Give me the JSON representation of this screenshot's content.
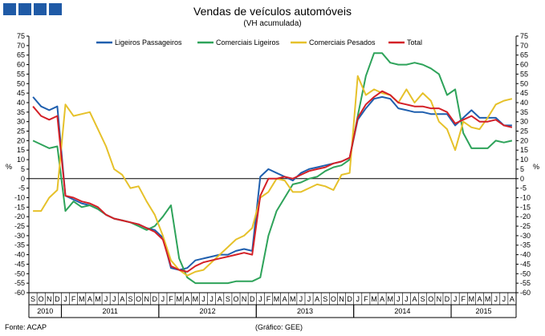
{
  "header": {
    "title": "Vendas de veículos automóveis",
    "subtitle": "(VH acumulada)"
  },
  "footer": {
    "source": "Fonte: ACAP",
    "credit": "(Gráfico: GEE)"
  },
  "colors": {
    "ligeiros_passageiros": "#1f5fae",
    "comerciais_ligeiros": "#2ea35a",
    "comerciais_pesados": "#e6c12a",
    "total": "#d42027",
    "logo": "#1f5aa6"
  },
  "chart_data": {
    "type": "line",
    "title": "Vendas de veículos automóveis",
    "subtitle": "(VH acumulada)",
    "ylabel_left": "%",
    "ylabel_right": "%",
    "ylim": [
      -60,
      75
    ],
    "yticks": [
      -60,
      -55,
      -50,
      -45,
      -40,
      -35,
      -30,
      -25,
      -20,
      -15,
      -10,
      -5,
      0,
      5,
      10,
      15,
      20,
      25,
      30,
      35,
      40,
      45,
      50,
      55,
      60,
      65,
      70,
      75
    ],
    "legend_position": "top",
    "x": [
      "S",
      "O",
      "N",
      "D",
      "J",
      "F",
      "M",
      "A",
      "M",
      "J",
      "J",
      "A",
      "S",
      "O",
      "N",
      "D",
      "J",
      "F",
      "M",
      "A",
      "M",
      "J",
      "J",
      "A",
      "S",
      "O",
      "N",
      "D",
      "J",
      "F",
      "M",
      "A",
      "M",
      "J",
      "J",
      "A",
      "S",
      "O",
      "N",
      "D",
      "J",
      "F",
      "M",
      "A",
      "M",
      "J",
      "J",
      "A",
      "S",
      "O",
      "N",
      "D",
      "J",
      "F",
      "M",
      "A",
      "M",
      "J",
      "J",
      "A"
    ],
    "years": [
      {
        "label": "2010",
        "start": 0,
        "end": 3
      },
      {
        "label": "2011",
        "start": 4,
        "end": 15
      },
      {
        "label": "2012",
        "start": 16,
        "end": 27
      },
      {
        "label": "2013",
        "start": 28,
        "end": 39
      },
      {
        "label": "2014",
        "start": 40,
        "end": 51
      },
      {
        "label": "2015",
        "start": 52,
        "end": 59
      }
    ],
    "series": [
      {
        "name": "Ligeiros Passageiros",
        "color": "#1f5fae",
        "values": [
          43,
          38,
          36,
          38,
          -9,
          -11,
          -13,
          -14,
          -16,
          -19,
          -21,
          -22,
          -23,
          -24,
          -26,
          -27,
          -31,
          -47,
          -48,
          -47,
          -43,
          -42,
          -41,
          -40,
          -40,
          -38,
          -37,
          -38,
          1,
          5,
          3,
          1,
          -1,
          3,
          5,
          6,
          7,
          8,
          9,
          11,
          31,
          37,
          42,
          43,
          42,
          37,
          36,
          35,
          35,
          34,
          34,
          34,
          28,
          32,
          36,
          32,
          32,
          32,
          28,
          28
        ]
      },
      {
        "name": "Comerciais Ligeiros",
        "color": "#2ea35a",
        "values": [
          20,
          18,
          16,
          17,
          -17,
          -12,
          -15,
          -14,
          -16,
          -19,
          -21,
          -22,
          -23,
          -25,
          -27,
          -25,
          -20,
          -14,
          -42,
          -52,
          -55,
          -55,
          -55,
          -55,
          -55,
          -54,
          -54,
          -54,
          -52,
          -30,
          -17,
          -10,
          -3,
          -2,
          0,
          1,
          4,
          6,
          7,
          10,
          33,
          54,
          66,
          66,
          61,
          60,
          60,
          61,
          60,
          58,
          55,
          44,
          47,
          24,
          16,
          16,
          16,
          20,
          19,
          20
        ]
      },
      {
        "name": "Comerciais Pesados",
        "color": "#e6c12a",
        "values": [
          -17,
          -17,
          -10,
          -6,
          39,
          33,
          34,
          35,
          26,
          17,
          5,
          2,
          -5,
          -4,
          -12,
          -19,
          -30,
          -43,
          -48,
          -51,
          -49,
          -48,
          -44,
          -40,
          -36,
          -32,
          -30,
          -26,
          -10,
          -7,
          0,
          -1,
          -7,
          -7,
          -5,
          -3,
          -4,
          -6,
          2,
          3,
          54,
          44,
          47,
          45,
          44,
          40,
          47,
          40,
          45,
          41,
          30,
          26,
          15,
          30,
          27,
          26,
          32,
          39,
          41,
          42
        ]
      },
      {
        "name": "Total",
        "color": "#d42027",
        "values": [
          38,
          33,
          31,
          33,
          -9,
          -10,
          -12,
          -13,
          -15,
          -19,
          -21,
          -22,
          -23,
          -24,
          -26,
          -28,
          -32,
          -46,
          -48,
          -49,
          -46,
          -44,
          -43,
          -42,
          -41,
          -40,
          -39,
          -40,
          -9,
          0,
          0,
          1,
          0,
          2,
          4,
          5,
          6,
          8,
          9,
          11,
          32,
          39,
          43,
          46,
          44,
          40,
          39,
          38,
          38,
          37,
          37,
          35,
          29,
          31,
          33,
          30,
          30,
          31,
          28,
          27
        ]
      }
    ]
  }
}
